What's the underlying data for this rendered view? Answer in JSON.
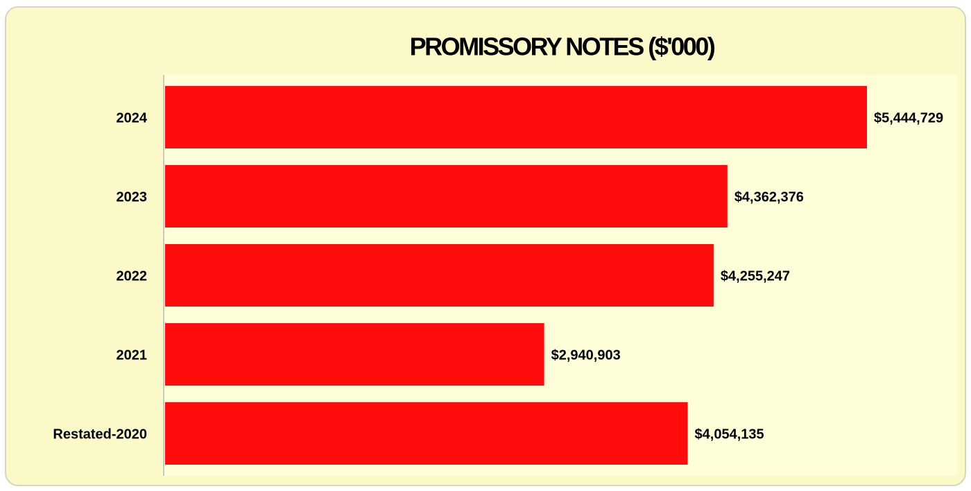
{
  "chart_data": {
    "type": "hbar",
    "title": "PROMISSORY NOTES ($'000)",
    "categories": [
      "2024",
      "2023",
      "2022",
      "2021",
      "Restated-2020"
    ],
    "values": [
      5444729,
      4362376,
      4255247,
      2940903,
      4054135
    ],
    "value_labels": [
      "$5,444,729",
      "$4,362,376",
      "$4,255,247",
      "$2,940,903",
      "$4,054,135"
    ],
    "color": "#ff0d0d"
  }
}
